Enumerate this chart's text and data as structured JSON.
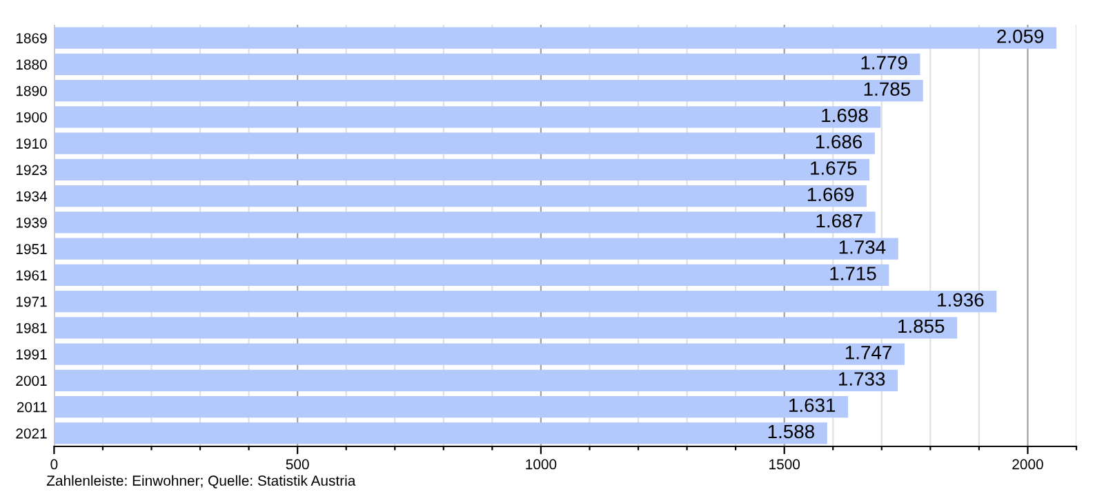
{
  "chart_data": {
    "type": "bar",
    "orientation": "horizontal",
    "categories": [
      "1869",
      "1880",
      "1890",
      "1900",
      "1910",
      "1923",
      "1934",
      "1939",
      "1951",
      "1961",
      "1971",
      "1981",
      "1991",
      "2001",
      "2011",
      "2021"
    ],
    "values": [
      2059,
      1779,
      1785,
      1698,
      1686,
      1675,
      1669,
      1687,
      1734,
      1715,
      1936,
      1855,
      1747,
      1733,
      1631,
      1588
    ],
    "value_labels": [
      "2.059",
      "1.779",
      "1.785",
      "1.698",
      "1.686",
      "1.675",
      "1.669",
      "1.687",
      "1.734",
      "1.715",
      "1.936",
      "1.855",
      "1.747",
      "1.733",
      "1.631",
      "1.588"
    ],
    "color": "#b3c8fb",
    "xlim": [
      0,
      2100
    ],
    "xticks": [
      0,
      {
        "value": 100,
        "label": null
      },
      {
        "value": 200,
        "label": null
      },
      {
        "value": 300,
        "label": null
      },
      {
        "value": 400,
        "label": null
      },
      500,
      {
        "value": 600,
        "label": null
      },
      {
        "value": 700,
        "label": null
      },
      {
        "value": 800,
        "label": null
      },
      {
        "value": 900,
        "label": null
      },
      1000,
      {
        "value": 1100,
        "label": null
      },
      {
        "value": 1200,
        "label": null
      },
      {
        "value": 1300,
        "label": null
      },
      {
        "value": 1400,
        "label": null
      },
      1500,
      {
        "value": 1600,
        "label": null
      },
      {
        "value": 1700,
        "label": null
      },
      {
        "value": 1800,
        "label": null
      },
      {
        "value": 1900,
        "label": null
      },
      2000,
      {
        "value": 2100,
        "label": null
      }
    ],
    "grid": "x",
    "annotations": [
      "Zahlenleiste: Einwohner; Quelle: Statistik Austria"
    ]
  }
}
